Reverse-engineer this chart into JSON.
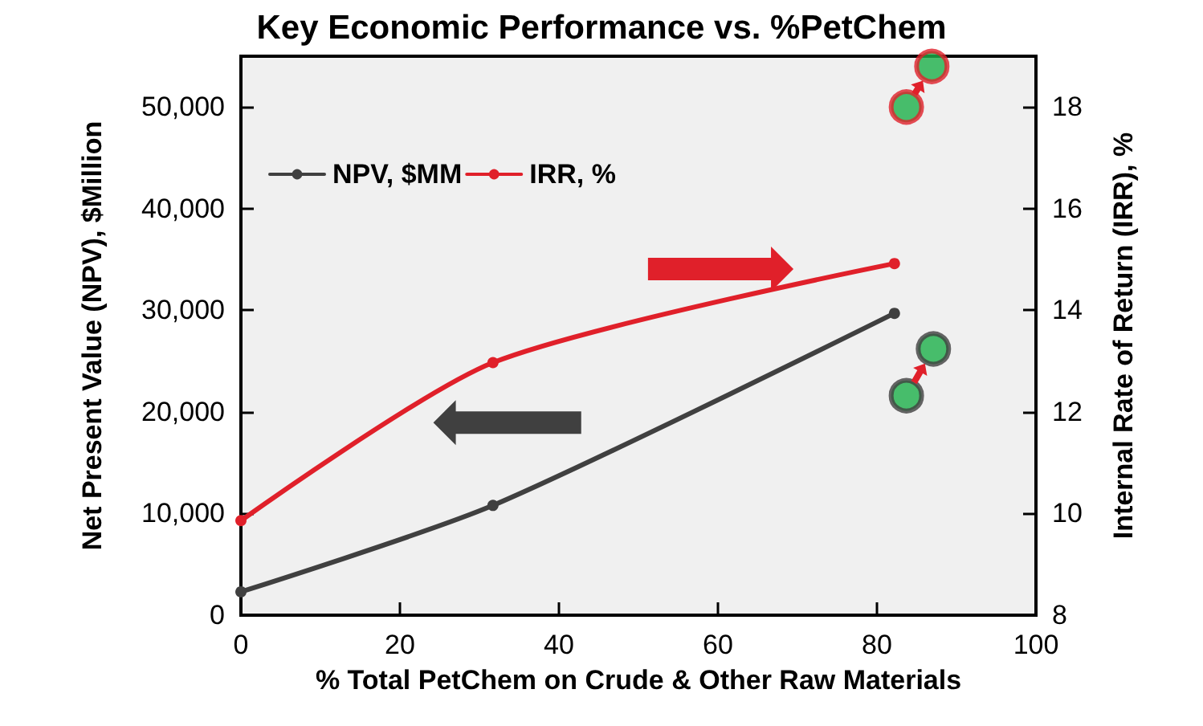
{
  "chart_data": {
    "type": "line",
    "title": "Key Economic Performance vs. %PetChem",
    "xlabel": "% Total PetChem on Crude & Other Raw Materials",
    "ylabel": "Net Present Value (NPV), $Million",
    "y2label": "Internal Rate of Return (IRR), %",
    "xlim": [
      0,
      100
    ],
    "xticks": [
      0,
      20,
      40,
      60,
      80,
      100
    ],
    "ylim": [
      0,
      55000
    ],
    "yticks": [
      {
        "value": 0,
        "label": "0"
      },
      {
        "value": 10000,
        "label": "10,000"
      },
      {
        "value": 20000,
        "label": "20,000"
      },
      {
        "value": 30000,
        "label": "30,000"
      },
      {
        "value": 40000,
        "label": "40,000"
      },
      {
        "value": 50000,
        "label": "50,000"
      }
    ],
    "y2lim": [
      8,
      19
    ],
    "y2ticks": [
      8,
      10,
      12,
      14,
      16,
      18
    ],
    "series": [
      {
        "name": "NPV, $MM",
        "color": "#404040",
        "x": [
          0,
          31.7,
          82.2
        ],
        "values": [
          2300,
          10800,
          29700
        ]
      },
      {
        "name": "IRR, %",
        "color": "#e0202a",
        "axis": "y2",
        "x": [
          0,
          31.7,
          82.2
        ],
        "values": [
          9.86,
          12.97,
          14.92
        ]
      },
      {
        "type": "scatter",
        "color": "#1db04a",
        "x": [
          83.7,
          87.1
        ],
        "values": [
          21600,
          26200
        ]
      },
      {
        "type": "scatter",
        "color": "#1db04a",
        "axis": "y2",
        "x": [
          83.7,
          86.9
        ],
        "values": [
          18.0,
          18.8
        ]
      }
    ],
    "marker": "circle",
    "line_style": "solid",
    "legend": "top left",
    "grid": false
  }
}
